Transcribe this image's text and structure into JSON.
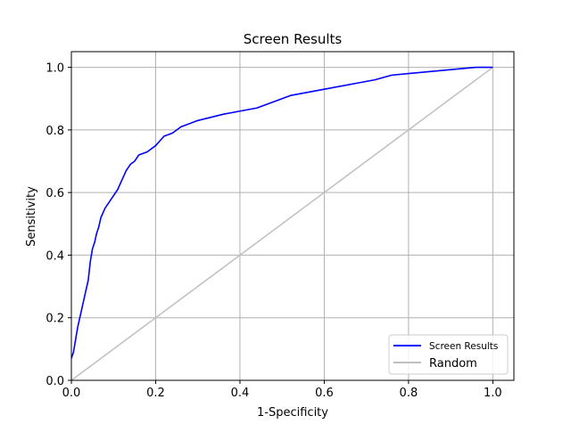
{
  "chart_data": {
    "type": "line",
    "title": "Screen Results",
    "xlabel": "1-Specificity",
    "ylabel": "Sensitivity",
    "xlim": [
      0.0,
      1.05
    ],
    "ylim": [
      0.0,
      1.05
    ],
    "xticks": [
      "0.0",
      "0.2",
      "0.4",
      "0.6",
      "0.8",
      "1.0"
    ],
    "yticks": [
      "0.0",
      "0.2",
      "0.4",
      "0.6",
      "0.8",
      "1.0"
    ],
    "xtick_values": [
      0.0,
      0.2,
      0.4,
      0.6,
      0.8,
      1.0
    ],
    "ytick_values": [
      0.0,
      0.2,
      0.4,
      0.6,
      0.8,
      1.0
    ],
    "grid": true,
    "legend_position": "lower-right",
    "series": [
      {
        "name": "Screen Results",
        "color": "#0000ff",
        "x": [
          0.0,
          0.005,
          0.01,
          0.015,
          0.02,
          0.025,
          0.03,
          0.035,
          0.04,
          0.045,
          0.05,
          0.055,
          0.06,
          0.065,
          0.07,
          0.08,
          0.09,
          0.1,
          0.11,
          0.12,
          0.13,
          0.14,
          0.15,
          0.16,
          0.18,
          0.2,
          0.22,
          0.24,
          0.26,
          0.28,
          0.3,
          0.33,
          0.36,
          0.4,
          0.44,
          0.48,
          0.52,
          0.56,
          0.6,
          0.64,
          0.68,
          0.72,
          0.76,
          0.8,
          0.84,
          0.88,
          0.92,
          0.96,
          1.0
        ],
        "y": [
          0.07,
          0.09,
          0.13,
          0.17,
          0.2,
          0.23,
          0.26,
          0.29,
          0.32,
          0.38,
          0.42,
          0.44,
          0.47,
          0.49,
          0.52,
          0.55,
          0.57,
          0.59,
          0.61,
          0.64,
          0.67,
          0.69,
          0.7,
          0.72,
          0.73,
          0.75,
          0.78,
          0.79,
          0.81,
          0.82,
          0.83,
          0.84,
          0.85,
          0.86,
          0.87,
          0.89,
          0.91,
          0.92,
          0.93,
          0.94,
          0.95,
          0.96,
          0.975,
          0.98,
          0.985,
          0.99,
          0.995,
          1.0,
          1.0
        ]
      },
      {
        "name": "Random",
        "color": "#bfbfbf",
        "x": [
          0.0,
          1.0
        ],
        "y": [
          0.0,
          1.0
        ]
      }
    ]
  }
}
